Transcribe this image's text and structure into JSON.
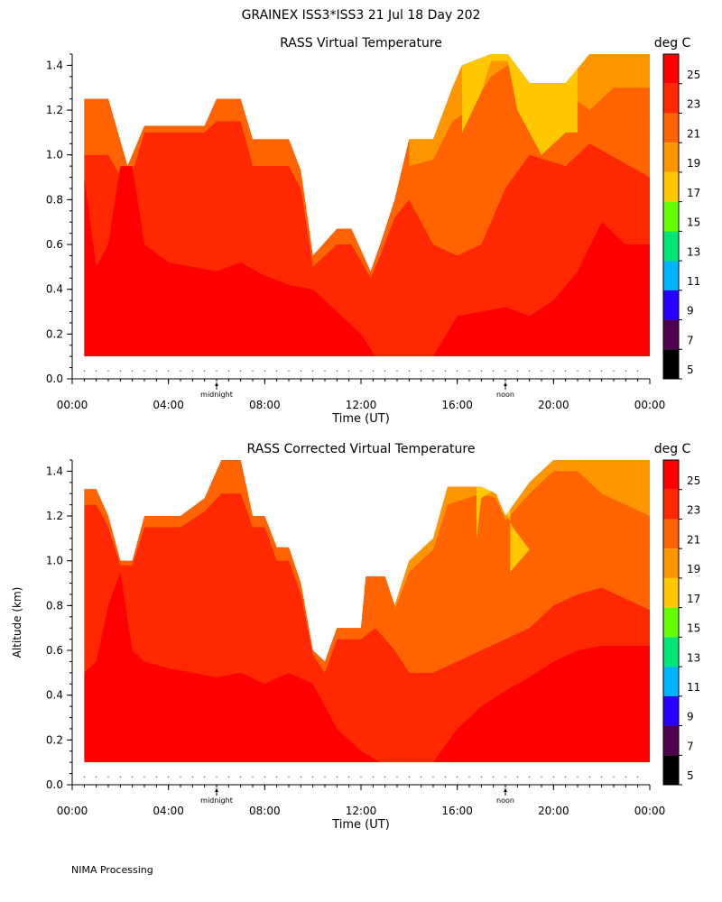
{
  "figure": {
    "title": "GRAINEX ISS3*ISS3  21 Jul 18 Day 202",
    "footer": "NIMA Processing"
  },
  "shared_axes": {
    "xlabel": "Time (UT)",
    "ylabel": "Altitude (km)",
    "x_ticks": [
      "00:00",
      "04:00",
      "08:00",
      "12:00",
      "16:00",
      "20:00",
      "00:00"
    ],
    "y_ticks": [
      "0.0",
      "0.2",
      "0.4",
      "0.6",
      "0.8",
      "1.0",
      "1.2",
      "1.4"
    ],
    "x_markers": [
      {
        "label": "midnight",
        "hour": 6
      },
      {
        "label": "noon",
        "hour": 18
      }
    ],
    "colorbar_unit": "deg C",
    "colorbar_levels": [
      {
        "value": "25",
        "color": "#ff0000"
      },
      {
        "value": "23",
        "color": "#ff2800"
      },
      {
        "value": "21",
        "color": "#ff6400"
      },
      {
        "value": "19",
        "color": "#ff9600"
      },
      {
        "value": "17",
        "color": "#ffc800"
      },
      {
        "value": "15",
        "color": "#64ff00"
      },
      {
        "value": "13",
        "color": "#00e678"
      },
      {
        "value": "11",
        "color": "#00b4ff"
      },
      {
        "value": "9",
        "color": "#2800ff"
      },
      {
        "value": "7",
        "color": "#500050"
      },
      {
        "value": "5",
        "color": "#000000"
      }
    ]
  },
  "chart_data": [
    {
      "type": "heatmap",
      "title": "RASS Virtual Temperature",
      "xlim": [
        0,
        24
      ],
      "ylim": [
        0,
        1.45
      ],
      "ceiling": [
        [
          0.5,
          1.25
        ],
        [
          1.5,
          1.25
        ],
        [
          2.3,
          0.95
        ],
        [
          3,
          1.13
        ],
        [
          5.5,
          1.13
        ],
        [
          6,
          1.25
        ],
        [
          7,
          1.25
        ],
        [
          7.5,
          1.07
        ],
        [
          9,
          1.07
        ],
        [
          9.5,
          0.93
        ],
        [
          10,
          0.55
        ],
        [
          11,
          0.67
        ],
        [
          11.6,
          0.67
        ],
        [
          12.4,
          0.48
        ],
        [
          12.8,
          0.6
        ],
        [
          13.4,
          0.8
        ],
        [
          14,
          1.07
        ],
        [
          15,
          1.07
        ],
        [
          15.8,
          1.3
        ],
        [
          16.2,
          1.4
        ],
        [
          17.4,
          1.45
        ],
        [
          18.1,
          1.45
        ],
        [
          19,
          1.32
        ],
        [
          20.5,
          1.32
        ],
        [
          21.5,
          1.45
        ],
        [
          24,
          1.45
        ]
      ],
      "base": 0.1,
      "zones": [
        {
          "temp": 20,
          "top": [
            [
              0.5,
              1.0
            ],
            [
              1.5,
              1.0
            ],
            [
              2.3,
              0.85
            ],
            [
              3,
              1.1
            ],
            [
              5.5,
              1.1
            ],
            [
              6,
              1.15
            ],
            [
              7,
              1.15
            ],
            [
              7.5,
              0.95
            ],
            [
              9,
              0.95
            ],
            [
              9.5,
              0.85
            ],
            [
              10,
              0.5
            ],
            [
              11,
              0.6
            ],
            [
              11.6,
              0.6
            ],
            [
              12.4,
              0.45
            ],
            [
              12.8,
              0.55
            ],
            [
              13.4,
              0.72
            ],
            [
              14,
              0.8
            ],
            [
              15,
              0.6
            ],
            [
              16,
              0.55
            ],
            [
              17,
              0.6
            ],
            [
              18,
              0.85
            ],
            [
              19,
              1.0
            ],
            [
              20.5,
              0.95
            ],
            [
              21.5,
              1.05
            ],
            [
              24,
              0.9
            ]
          ]
        },
        {
          "temp": 18,
          "top": [
            [
              14,
              0.95
            ],
            [
              15,
              0.98
            ],
            [
              15.8,
              1.15
            ],
            [
              16.5,
              1.2
            ],
            [
              17.4,
              1.35
            ],
            [
              18.1,
              1.4
            ],
            [
              19,
              1.28
            ],
            [
              20.5,
              1.28
            ],
            [
              21.5,
              1.2
            ],
            [
              22.5,
              1.3
            ],
            [
              24,
              1.3
            ]
          ]
        },
        {
          "temp": 16,
          "top": [
            [
              16.2,
              1.1
            ],
            [
              17,
              1.28
            ],
            [
              17.4,
              1.42
            ],
            [
              18.1,
              1.42
            ],
            [
              18.5,
              1.2
            ],
            [
              19.5,
              1.0
            ],
            [
              20.5,
              1.1
            ],
            [
              21,
              1.1
            ]
          ]
        },
        {
          "temp": 24,
          "top": [
            [
              0.5,
              0.9
            ],
            [
              1,
              0.5
            ],
            [
              1.5,
              0.6
            ],
            [
              2,
              0.95
            ],
            [
              2.5,
              0.95
            ],
            [
              3,
              0.6
            ],
            [
              4,
              0.52
            ],
            [
              5,
              0.5
            ],
            [
              6,
              0.48
            ],
            [
              7,
              0.52
            ],
            [
              8,
              0.46
            ],
            [
              9,
              0.42
            ],
            [
              10,
              0.4
            ],
            [
              11,
              0.3
            ],
            [
              12,
              0.2
            ],
            [
              12.6,
              0.1
            ],
            [
              15,
              0.1
            ],
            [
              16,
              0.28
            ],
            [
              17,
              0.3
            ],
            [
              18,
              0.32
            ],
            [
              19,
              0.28
            ],
            [
              20,
              0.35
            ],
            [
              21,
              0.48
            ],
            [
              22,
              0.7
            ],
            [
              23,
              0.6
            ],
            [
              24,
              0.6
            ]
          ]
        }
      ]
    },
    {
      "type": "heatmap",
      "title": "RASS Corrected Virtual Temperature",
      "xlim": [
        0,
        24
      ],
      "ylim": [
        0,
        1.45
      ],
      "ceiling": [
        [
          0.5,
          1.32
        ],
        [
          1,
          1.32
        ],
        [
          1.5,
          1.2
        ],
        [
          2,
          1.0
        ],
        [
          2.5,
          1.0
        ],
        [
          3,
          1.2
        ],
        [
          4.5,
          1.2
        ],
        [
          5.5,
          1.28
        ],
        [
          6.2,
          1.45
        ],
        [
          7,
          1.45
        ],
        [
          7.5,
          1.2
        ],
        [
          8,
          1.2
        ],
        [
          8.5,
          1.06
        ],
        [
          9,
          1.06
        ],
        [
          9.5,
          0.9
        ],
        [
          10,
          0.6
        ],
        [
          10.5,
          0.55
        ],
        [
          11,
          0.7
        ],
        [
          12,
          0.7
        ],
        [
          12.2,
          0.93
        ],
        [
          13,
          0.93
        ],
        [
          13.4,
          0.8
        ],
        [
          14,
          1.0
        ],
        [
          15,
          1.1
        ],
        [
          15.6,
          1.33
        ],
        [
          17,
          1.33
        ],
        [
          17.6,
          1.3
        ],
        [
          18,
          1.2
        ],
        [
          19,
          1.35
        ],
        [
          20,
          1.45
        ],
        [
          24,
          1.45
        ]
      ],
      "base": 0.1,
      "zones": [
        {
          "temp": 20,
          "top": [
            [
              0.5,
              1.25
            ],
            [
              1,
              1.25
            ],
            [
              1.5,
              1.15
            ],
            [
              2,
              0.98
            ],
            [
              2.5,
              0.98
            ],
            [
              3,
              1.15
            ],
            [
              4.5,
              1.15
            ],
            [
              5.5,
              1.22
            ],
            [
              6.2,
              1.3
            ],
            [
              7,
              1.3
            ],
            [
              7.5,
              1.15
            ],
            [
              8,
              1.15
            ],
            [
              8.5,
              1.0
            ],
            [
              9,
              1.0
            ],
            [
              9.5,
              0.85
            ],
            [
              10,
              0.58
            ],
            [
              10.5,
              0.5
            ],
            [
              11,
              0.65
            ],
            [
              12,
              0.65
            ],
            [
              12.6,
              0.7
            ],
            [
              13.4,
              0.6
            ],
            [
              14,
              0.5
            ],
            [
              15,
              0.5
            ],
            [
              16,
              0.55
            ],
            [
              17,
              0.6
            ],
            [
              18,
              0.65
            ],
            [
              19,
              0.7
            ],
            [
              20,
              0.8
            ],
            [
              21,
              0.85
            ],
            [
              22,
              0.88
            ],
            [
              24,
              0.78
            ]
          ]
        },
        {
          "temp": 18,
          "top": [
            [
              13.4,
              0.78
            ],
            [
              14,
              0.95
            ],
            [
              15,
              1.05
            ],
            [
              15.6,
              1.25
            ],
            [
              17,
              1.3
            ],
            [
              17.6,
              1.28
            ],
            [
              18,
              1.18
            ],
            [
              19,
              1.3
            ],
            [
              20,
              1.4
            ],
            [
              21,
              1.4
            ],
            [
              22,
              1.3
            ],
            [
              23,
              1.25
            ],
            [
              24,
              1.2
            ]
          ]
        },
        {
          "temp": 16,
          "top": [
            [
              16.8,
              1.1
            ],
            [
              17,
              1.28
            ],
            [
              17.6,
              1.32
            ],
            [
              18.3,
              1.15
            ],
            [
              19,
              1.05
            ],
            [
              18.2,
              0.95
            ]
          ]
        },
        {
          "temp": 24,
          "top": [
            [
              0.5,
              0.5
            ],
            [
              1,
              0.55
            ],
            [
              1.5,
              0.8
            ],
            [
              2,
              0.95
            ],
            [
              2.5,
              0.6
            ],
            [
              3,
              0.55
            ],
            [
              4,
              0.52
            ],
            [
              5,
              0.5
            ],
            [
              6,
              0.48
            ],
            [
              7,
              0.5
            ],
            [
              8,
              0.45
            ],
            [
              9,
              0.5
            ],
            [
              10,
              0.45
            ],
            [
              10.5,
              0.35
            ],
            [
              11,
              0.25
            ],
            [
              12,
              0.15
            ],
            [
              12.8,
              0.1
            ],
            [
              15,
              0.1
            ],
            [
              16,
              0.25
            ],
            [
              17,
              0.35
            ],
            [
              18,
              0.42
            ],
            [
              19,
              0.48
            ],
            [
              20,
              0.55
            ],
            [
              21,
              0.6
            ],
            [
              22,
              0.62
            ],
            [
              24,
              0.62
            ]
          ]
        }
      ]
    }
  ]
}
